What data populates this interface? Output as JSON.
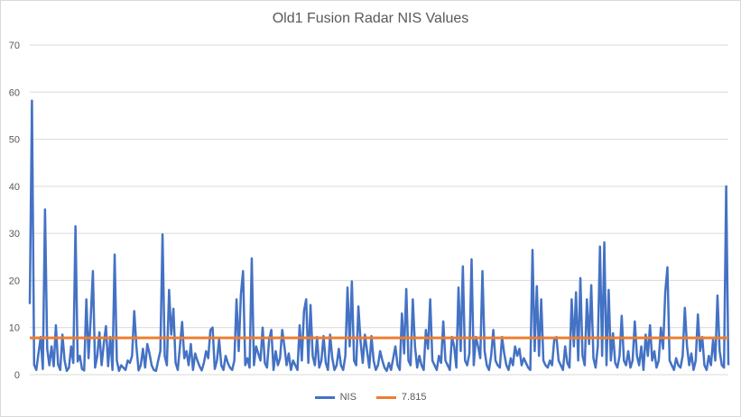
{
  "chart_data": {
    "type": "line",
    "title": "Old1 Fusion Radar NIS Values",
    "xlabel": "",
    "ylabel": "",
    "ylim": [
      0,
      70
    ],
    "yticks": [
      "0",
      "10",
      "20",
      "30",
      "40",
      "50",
      "60",
      "70"
    ],
    "grid": true,
    "legend_position": "bottom",
    "series": [
      {
        "name": "NIS",
        "color": "#4472C4",
        "values": [
          15.0,
          58.2,
          2.1,
          1.0,
          4.5,
          8.0,
          1.2,
          35.1,
          5.5,
          2.0,
          6.0,
          1.8,
          10.5,
          2.2,
          1.0,
          8.5,
          3.0,
          0.8,
          1.5,
          6.0,
          2.5,
          31.5,
          2.8,
          4.0,
          1.2,
          0.9,
          16.0,
          3.5,
          12.0,
          22.0,
          1.5,
          4.0,
          9.0,
          2.0,
          6.5,
          10.3,
          1.8,
          8.0,
          1.0,
          25.5,
          3.0,
          0.8,
          2.0,
          1.5,
          1.0,
          3.0,
          2.5,
          4.0,
          13.5,
          6.0,
          0.9,
          2.0,
          5.5,
          1.5,
          6.5,
          4.5,
          2.0,
          1.0,
          0.8,
          3.0,
          5.0,
          29.8,
          4.0,
          2.0,
          18.0,
          8.5,
          14.0,
          2.5,
          1.0,
          6.0,
          11.2,
          3.5,
          5.0,
          2.0,
          6.5,
          1.0,
          4.5,
          3.0,
          1.8,
          0.9,
          2.5,
          5.0,
          3.5,
          9.5,
          10.0,
          1.2,
          3.0,
          7.5,
          2.0,
          1.0,
          4.0,
          2.5,
          1.5,
          1.0,
          3.0,
          16.0,
          5.0,
          17.0,
          22.0,
          2.0,
          3.5,
          1.5,
          24.7,
          2.0,
          6.0,
          4.5,
          3.0,
          10.0,
          2.5,
          1.5,
          7.5,
          9.5,
          1.0,
          5.0,
          2.0,
          3.5,
          9.5,
          6.0,
          2.0,
          4.5,
          1.0,
          3.0,
          2.0,
          1.0,
          10.5,
          3.0,
          13.5,
          16.0,
          2.5,
          14.8,
          4.0,
          2.0,
          8.0,
          1.5,
          3.0,
          8.2,
          2.5,
          1.0,
          8.5,
          3.5,
          1.0,
          2.0,
          5.5,
          2.0,
          1.0,
          4.0,
          18.5,
          6.0,
          19.8,
          3.0,
          2.0,
          14.5,
          7.0,
          2.5,
          8.5,
          5.0,
          1.5,
          8.2,
          3.0,
          1.0,
          2.0,
          5.0,
          3.0,
          1.5,
          0.8,
          2.5,
          1.0,
          3.5,
          6.0,
          2.0,
          1.0,
          13.0,
          4.5,
          18.2,
          3.0,
          2.0,
          16.0,
          6.0,
          1.5,
          4.0,
          2.0,
          1.0,
          9.5,
          5.5,
          16.0,
          3.0,
          2.0,
          1.0,
          4.0,
          2.5,
          11.3,
          3.0,
          2.0,
          1.0,
          8.0,
          6.0,
          1.5,
          18.5,
          5.0,
          23.0,
          3.0,
          2.0,
          4.5,
          24.5,
          2.0,
          8.0,
          6.0,
          3.5,
          22.0,
          5.0,
          2.0,
          1.0,
          4.0,
          9.5,
          3.0,
          2.0,
          1.5,
          8.0,
          4.5,
          2.0,
          1.0,
          3.5,
          2.0,
          6.0,
          4.0,
          5.5,
          2.0,
          3.5,
          2.5,
          1.5,
          1.0,
          26.5,
          5.0,
          18.8,
          4.0,
          16.0,
          3.0,
          2.0,
          1.5,
          3.0,
          2.0,
          7.5,
          8.0,
          3.0,
          2.0,
          1.0,
          6.0,
          2.5,
          1.5,
          16.0,
          6.0,
          17.5,
          3.0,
          20.5,
          4.0,
          2.0,
          16.0,
          6.5,
          19.0,
          3.5,
          1.5,
          6.0,
          27.2,
          4.0,
          28.1,
          2.0,
          18.0,
          3.0,
          8.8,
          2.5,
          1.5,
          4.0,
          12.5,
          3.0,
          2.0,
          5.0,
          1.5,
          3.0,
          11.3,
          4.0,
          2.0,
          6.0,
          1.0,
          8.5,
          4.0,
          10.5,
          3.0,
          5.0,
          1.5,
          3.0,
          10.0,
          5.5,
          17.5,
          22.8,
          3.0,
          2.0,
          1.0,
          3.5,
          2.0,
          1.5,
          4.0,
          14.2,
          6.0,
          2.0,
          4.5,
          1.0,
          3.0,
          12.8,
          5.0,
          8.0,
          2.0,
          1.0,
          4.0,
          2.0,
          7.5,
          3.0,
          16.8,
          5.0,
          2.0,
          1.5,
          40.0,
          2.0
        ]
      },
      {
        "name": "7.815",
        "color": "#ED7D31",
        "constant": 7.815
      }
    ]
  }
}
